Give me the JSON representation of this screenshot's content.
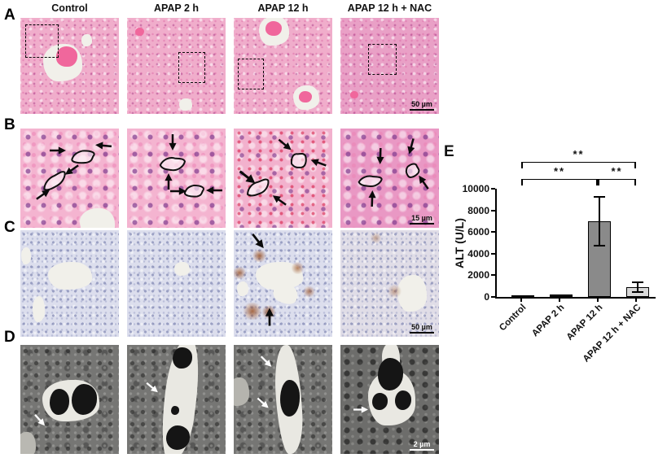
{
  "figure": {
    "columns": [
      "Control",
      "APAP 2 h",
      "APAP 12 h",
      "APAP 12 h + NAC"
    ],
    "panels": {
      "A": {
        "label": "A",
        "scale_bar": "50 µm"
      },
      "B": {
        "label": "B",
        "scale_bar": "15 µm"
      },
      "C": {
        "label": "C",
        "scale_bar": "50 µm"
      },
      "D": {
        "label": "D",
        "scale_bar": "2 µm"
      },
      "E": {
        "label": "E"
      }
    }
  },
  "chart_data": {
    "type": "bar",
    "title": "",
    "xlabel": "",
    "ylabel": "ALT (U/L)",
    "categories": [
      "Control",
      "APAP 2 h",
      "APAP 12 h",
      "APAP 12 h + NAC"
    ],
    "values": [
      100,
      200,
      7000,
      900
    ],
    "errors": [
      0,
      60,
      2250,
      430
    ],
    "bar_colors": [
      "#1c1c1c",
      "#1c1c1c",
      "#8a8a8a",
      "#d8d8d8"
    ],
    "ylim": [
      0,
      10000
    ],
    "yticks": [
      0,
      2000,
      4000,
      6000,
      8000,
      10000
    ],
    "grid": false,
    "legend": "none",
    "significance": [
      {
        "from": 0,
        "to": 2,
        "label": "**",
        "level": 1
      },
      {
        "from": 2,
        "to": 3,
        "label": "**",
        "level": 1
      },
      {
        "from": 0,
        "to": 3,
        "label": "**",
        "level": 2
      }
    ]
  }
}
